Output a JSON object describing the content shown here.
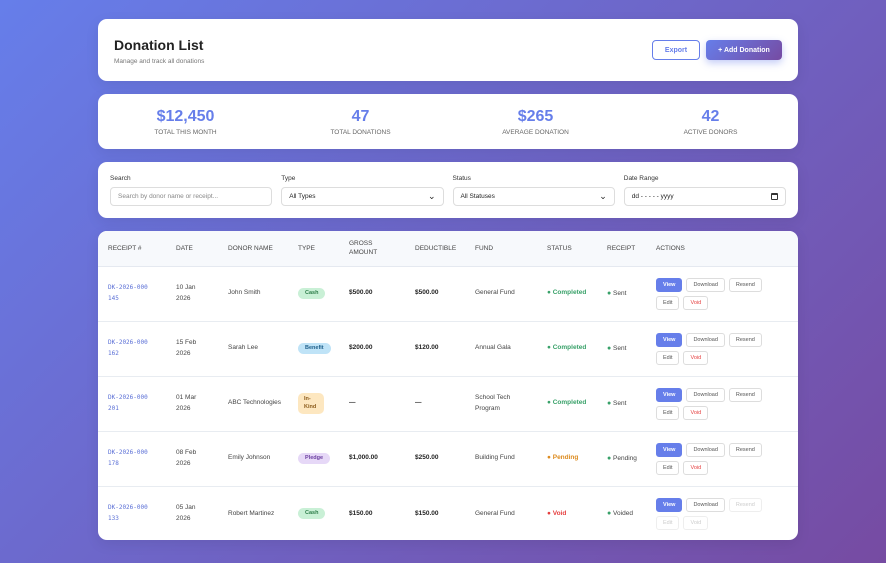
{
  "header": {
    "title": "Donation List",
    "subtitle": "Manage and track all donations",
    "export_label": "Export",
    "add_label": "+ Add Donation"
  },
  "stats": [
    {
      "value": "$12,450",
      "label": "Total This Month"
    },
    {
      "value": "47",
      "label": "Total Donations"
    },
    {
      "value": "$265",
      "label": "Average Donation"
    },
    {
      "value": "42",
      "label": "Active Donors"
    }
  ],
  "filters": {
    "search_label": "Search",
    "search_placeholder": "Search by donor name or receipt...",
    "type_label": "Type",
    "type_value": "All Types",
    "status_label": "Status",
    "status_value": "All Statuses",
    "date_label": "Date Range",
    "date_placeholder": "dd - - - - - yyyy"
  },
  "table": {
    "columns": [
      "Receipt #",
      "Date",
      "Donor Name",
      "Type",
      "Gross Amount",
      "Deductible",
      "Fund",
      "Status",
      "Receipt",
      "Actions"
    ],
    "actions": {
      "view": "View",
      "download": "Download",
      "resend": "Resend",
      "edit": "Edit",
      "void": "Void"
    },
    "rows": [
      {
        "receipt": "DK-2026-000145",
        "date": "10 Jan 2026",
        "donor": "John Smith",
        "type": "Cash",
        "gross": "$500.00",
        "deductible": "$500.00",
        "fund": "General Fund",
        "status": "Completed",
        "receipt_status": "Sent",
        "disabled": false
      },
      {
        "receipt": "DK-2026-000162",
        "date": "15 Feb 2026",
        "donor": "Sarah Lee",
        "type": "Benefit",
        "gross": "$200.00",
        "deductible": "$120.00",
        "fund": "Annual Gala",
        "status": "Completed",
        "receipt_status": "Sent",
        "disabled": false
      },
      {
        "receipt": "DK-2026-000201",
        "date": "01 Mar 2026",
        "donor": "ABC Technologies",
        "type": "In-Kind",
        "gross": "—",
        "deductible": "—",
        "fund": "School Tech Program",
        "status": "Completed",
        "receipt_status": "Sent",
        "disabled": false
      },
      {
        "receipt": "DK-2026-000178",
        "date": "08 Feb 2026",
        "donor": "Emily Johnson",
        "type": "Pledge",
        "gross": "$1,000.00",
        "deductible": "$250.00",
        "fund": "Building Fund",
        "status": "Pending",
        "receipt_status": "Pending",
        "disabled": false
      },
      {
        "receipt": "DK-2026-000133",
        "date": "05 Jan 2026",
        "donor": "Robert Martinez",
        "type": "Cash",
        "gross": "$150.00",
        "deductible": "$150.00",
        "fund": "General Fund",
        "status": "Void",
        "receipt_status": "Voided",
        "disabled": true
      }
    ]
  },
  "colors": {
    "accent": "#667eea",
    "gradient_end": "#764ba2",
    "completed": "#38a169",
    "pending": "#dd8b1f",
    "void": "#e53e3e"
  }
}
